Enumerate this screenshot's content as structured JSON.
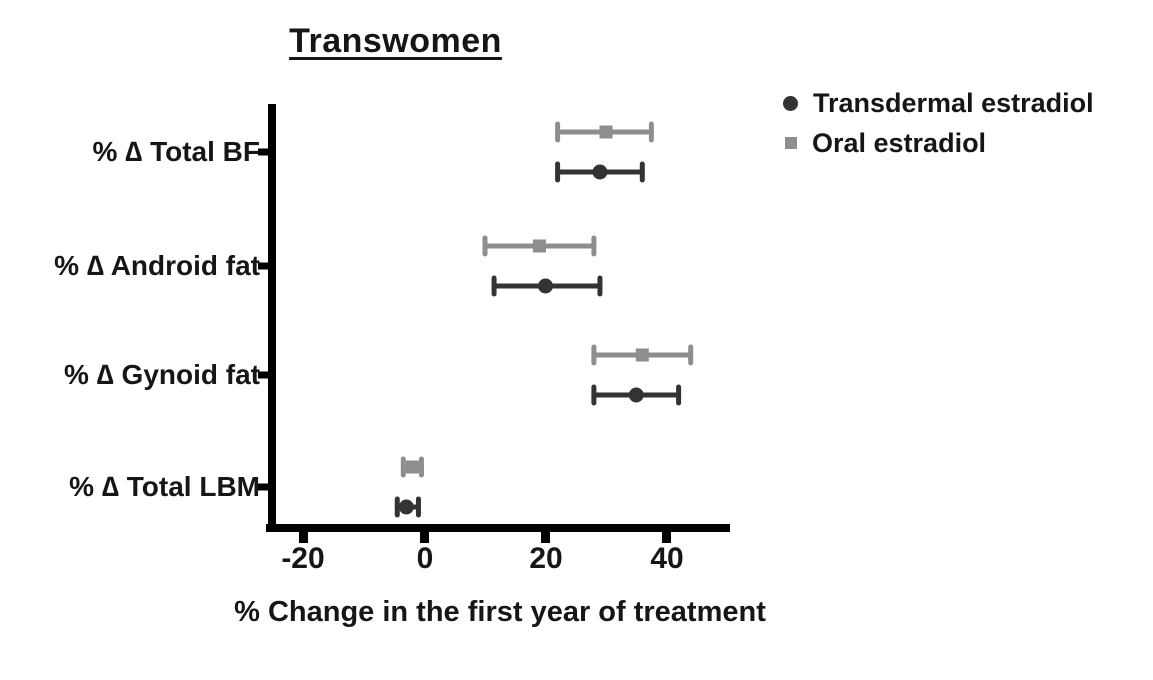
{
  "chart_data": {
    "type": "scatter",
    "chart_style": "forest-plot-dot-and-whisker",
    "title": "Transwomen",
    "xlabel": "% Change in the first year of treatment",
    "ylabel": "",
    "categories": [
      "% ∆ Total BF",
      "% ∆ Android fat",
      "% ∆ Gynoid fat",
      "% ∆ Total LBM"
    ],
    "x_tick_labels": [
      "-20",
      "0",
      "20",
      "40"
    ],
    "x_tick_values": [
      -20,
      0,
      20,
      40
    ],
    "xlim": [
      -25.5,
      50.5
    ],
    "grid": false,
    "legend_position": "top-right",
    "axis_color": "#000000",
    "background_color": "#ffffff",
    "series": [
      {
        "name": "Transdermal estradiol",
        "marker": "circle",
        "color": "#333333",
        "values": [
          29,
          20,
          35,
          -3
        ],
        "ci_low": [
          22,
          11.5,
          28,
          -4.5
        ],
        "ci_high": [
          36,
          29,
          42,
          -1
        ]
      },
      {
        "name": "Oral estradiol",
        "marker": "square",
        "color": "#8e8e8e",
        "values": [
          30,
          19,
          36,
          -2
        ],
        "ci_low": [
          22,
          10,
          28,
          -3.5
        ],
        "ci_high": [
          37.5,
          28,
          44,
          -0.5
        ]
      }
    ]
  }
}
